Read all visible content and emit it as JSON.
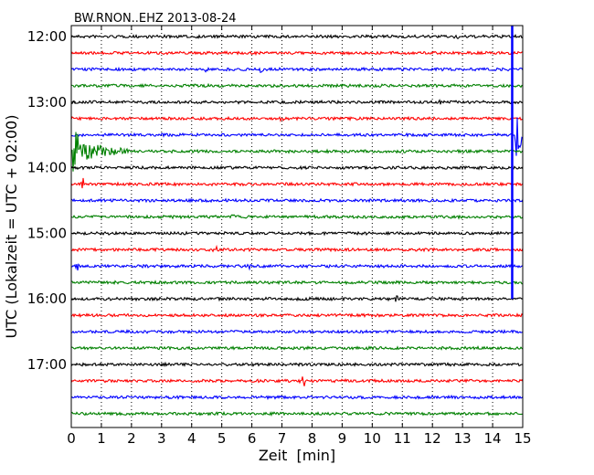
{
  "chart_data": {
    "type": "line",
    "title": "BW.RNON..EHZ 2013-08-24",
    "xlabel": "Zeit  [min]",
    "ylabel": "UTC (Lokalzeit = UTC + 02:00)",
    "xlim": [
      0,
      15
    ],
    "x_ticks": [
      "0",
      "1",
      "2",
      "3",
      "4",
      "5",
      "6",
      "7",
      "8",
      "9",
      "10",
      "11",
      "12",
      "13",
      "14",
      "15"
    ],
    "y_tick_labels": [
      "12:00",
      "13:00",
      "14:00",
      "15:00",
      "16:00",
      "17:00"
    ],
    "grid": true,
    "colors": [
      "#000000",
      "#ff0000",
      "#0000ff",
      "#008000"
    ],
    "trace_rows": [
      "12:00",
      "12:15",
      "12:30",
      "12:45",
      "13:00",
      "13:15",
      "13:30",
      "13:45",
      "14:00",
      "14:15",
      "14:30",
      "14:45",
      "15:00",
      "15:15",
      "15:30",
      "15:45",
      "16:00",
      "16:15",
      "16:30",
      "16:45",
      "17:00",
      "17:15",
      "17:30",
      "17:45"
    ],
    "events": [
      {
        "trace": "12:00",
        "minute": 12.8,
        "amplitude": 0.5
      },
      {
        "trace": "12:30",
        "minute": 4.5,
        "amplitude": 0.3
      },
      {
        "trace": "12:30",
        "minute": 6.3,
        "amplitude": 0.45
      },
      {
        "trace": "13:00",
        "minute": 12.2,
        "amplitude": 0.45
      },
      {
        "trace": "13:15",
        "minute": 7.0,
        "amplitude": 0.3
      },
      {
        "trace": "13:45",
        "minute": 0.1,
        "amplitude": 3.8,
        "decay_min": 1.8
      },
      {
        "trace": "14:15",
        "minute": 0.4,
        "amplitude": 0.9
      },
      {
        "trace": "14:45",
        "minute": 5.4,
        "amplitude": 0.4
      },
      {
        "trace": "15:15",
        "minute": 4.8,
        "amplitude": 0.45
      },
      {
        "trace": "15:30",
        "minute": 0.25,
        "amplitude": 0.9
      },
      {
        "trace": "15:30",
        "minute": 5.9,
        "amplitude": 0.35
      },
      {
        "trace": "16:00",
        "minute": 10.8,
        "amplitude": 0.45
      },
      {
        "trace": "16:00",
        "minute": 13.4,
        "amplitude": 0.3
      },
      {
        "trace": "17:15",
        "minute": 7.7,
        "amplitude": 1.2
      },
      {
        "trace": "12:30",
        "minute": 14.65,
        "amplitude": 11.5,
        "clip_trace_range": [
          "12:00",
          "16:00"
        ]
      },
      {
        "trace": "13:30",
        "minute": 14.8,
        "amplitude": 4.5,
        "decay_min": 0.6
      }
    ]
  }
}
